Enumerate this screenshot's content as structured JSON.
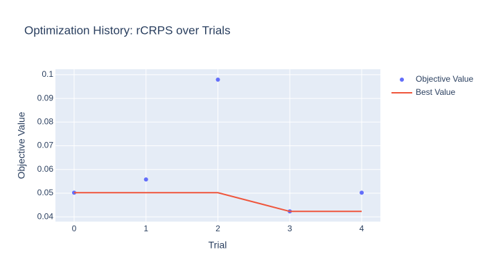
{
  "chart_data": {
    "type": "scatter",
    "title": "Optimization History: rCRPS over Trials",
    "x_label": "Trial",
    "y_label": "Objective Value",
    "x": [
      0,
      1,
      2,
      3,
      4
    ],
    "series": [
      {
        "name": "Objective Value",
        "mode": "markers",
        "color": "#636efa",
        "values": [
          0.0502,
          0.0558,
          0.0979,
          0.0423,
          0.0502
        ]
      },
      {
        "name": "Best Value",
        "mode": "lines",
        "color": "#ef553b",
        "values": [
          0.0502,
          0.0502,
          0.0502,
          0.0423,
          0.0423
        ]
      }
    ],
    "xlim": [
      -0.26,
      4.26
    ],
    "ylim": [
      0.038,
      0.1023
    ],
    "xticks": [
      0,
      1,
      2,
      3,
      4
    ],
    "yticks": [
      0.04,
      0.05,
      0.06,
      0.07,
      0.08,
      0.09,
      0.1
    ],
    "grid": true,
    "legend": "right"
  }
}
